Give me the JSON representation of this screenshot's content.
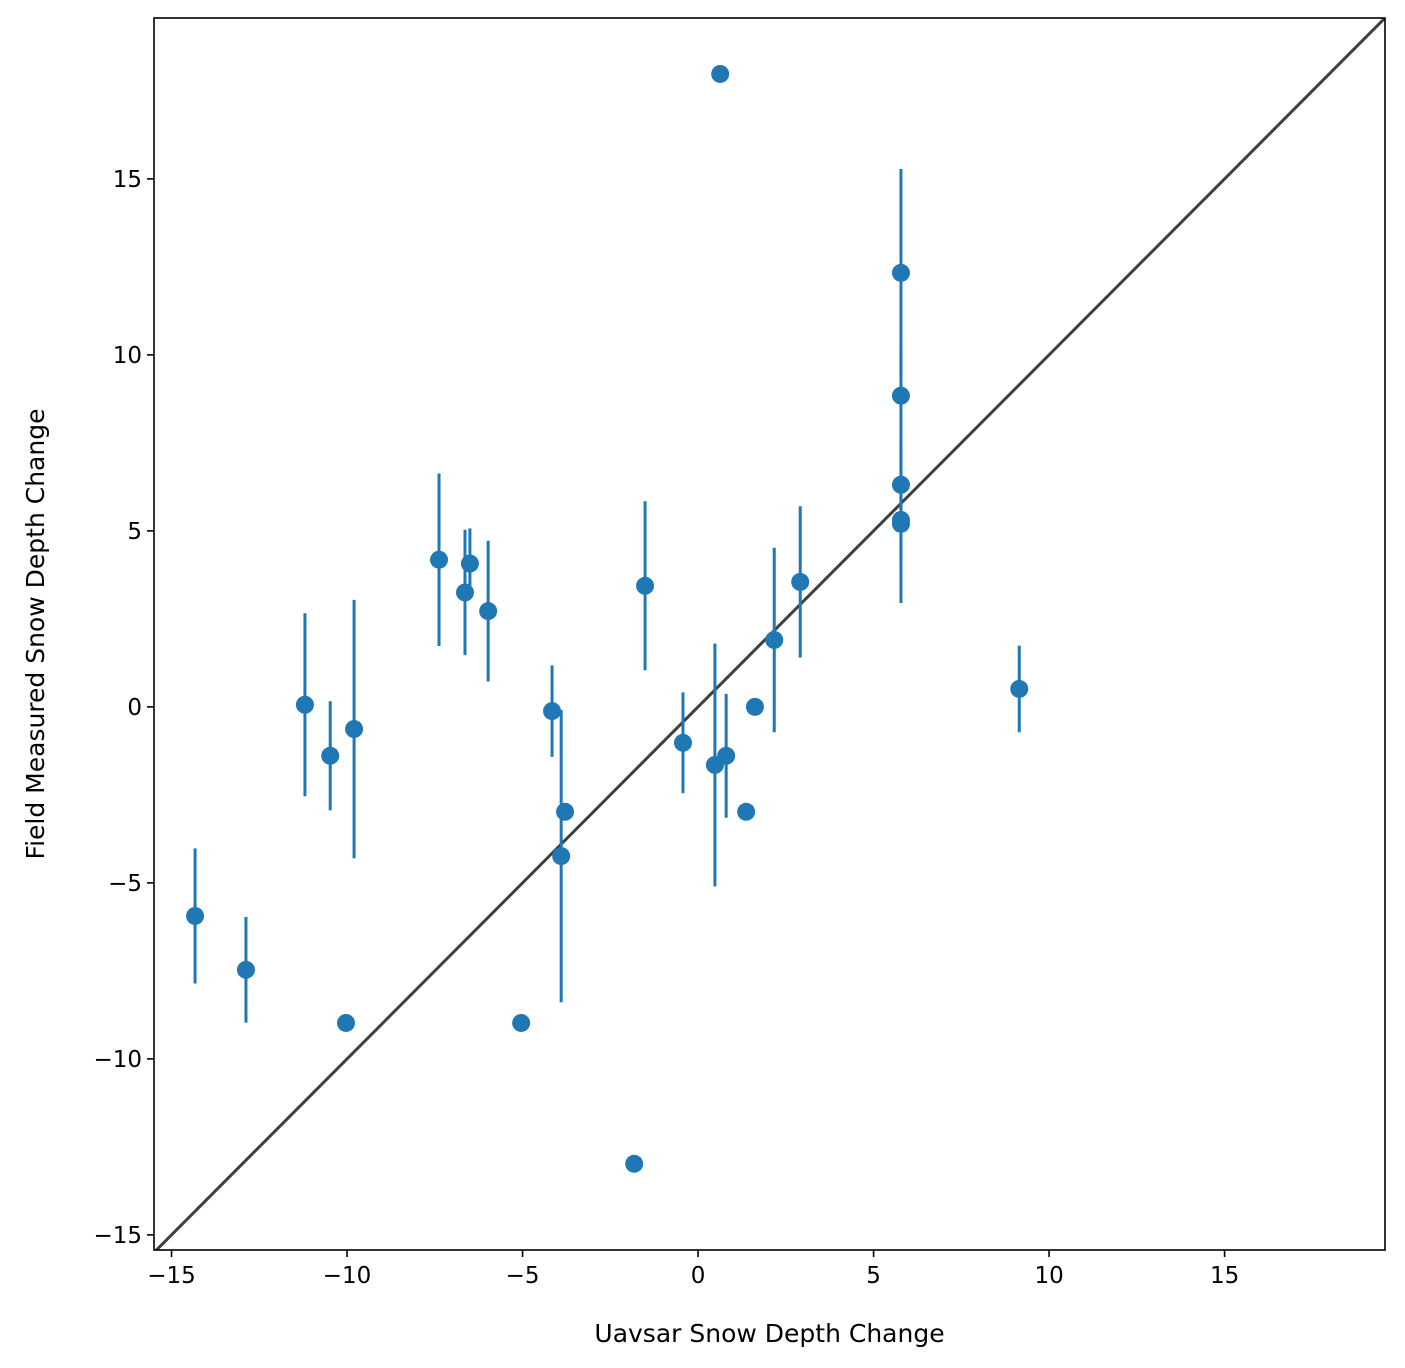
{
  "chart_data": {
    "type": "scatter",
    "title": "",
    "xlabel": "Uavsar Snow Depth Change",
    "ylabel": "Field Measured Snow Depth Change",
    "xlim": [
      -15.5,
      19.57
    ],
    "ylim": [
      -15.43,
      19.57
    ],
    "xticks": [
      -15,
      -10,
      -5,
      0,
      5,
      10,
      15
    ],
    "yticks": [
      -15,
      -10,
      -5,
      0,
      5,
      10,
      15
    ],
    "xtick_labels": [
      "−15",
      "−10",
      "−5",
      "0",
      "5",
      "10",
      "15"
    ],
    "ytick_labels": [
      "−15",
      "−10",
      "−5",
      "0",
      "5",
      "10",
      "15"
    ],
    "grid": false,
    "reference_line": "y = x",
    "colors": {
      "points": "#1f77b4",
      "reference_line": "#3f3f3f"
    },
    "series": [
      {
        "x": [
          -14.33,
          -12.88,
          -11.2,
          -10.48,
          -10.03,
          -9.8,
          -7.38,
          -6.64,
          -6.5,
          -5.98,
          -5.04,
          -4.16,
          -3.9,
          -3.79,
          -1.82,
          -1.51,
          -0.43,
          0.48,
          0.63,
          0.8,
          1.37,
          1.62,
          2.17,
          2.91,
          5.78,
          5.78,
          5.78,
          5.78,
          5.78,
          9.15
        ],
        "y": [
          -5.94,
          -7.47,
          0.06,
          -1.39,
          -8.98,
          -0.63,
          4.18,
          3.25,
          4.07,
          2.72,
          -8.98,
          -0.12,
          -4.24,
          -2.98,
          -12.98,
          3.44,
          -1.02,
          -1.65,
          17.98,
          -1.39,
          -2.98,
          0.0,
          1.9,
          3.55,
          12.33,
          8.84,
          6.31,
          5.31,
          5.2,
          0.51
        ],
        "yerr": [
          1.92,
          1.5,
          2.6,
          1.55,
          null,
          3.67,
          2.45,
          1.78,
          1.0,
          2.0,
          null,
          1.3,
          4.15,
          null,
          null,
          2.4,
          1.43,
          3.45,
          null,
          1.76,
          null,
          null,
          2.62,
          2.15,
          2.95,
          1.4,
          1.2,
          1.2,
          2.25,
          1.23
        ]
      }
    ]
  }
}
